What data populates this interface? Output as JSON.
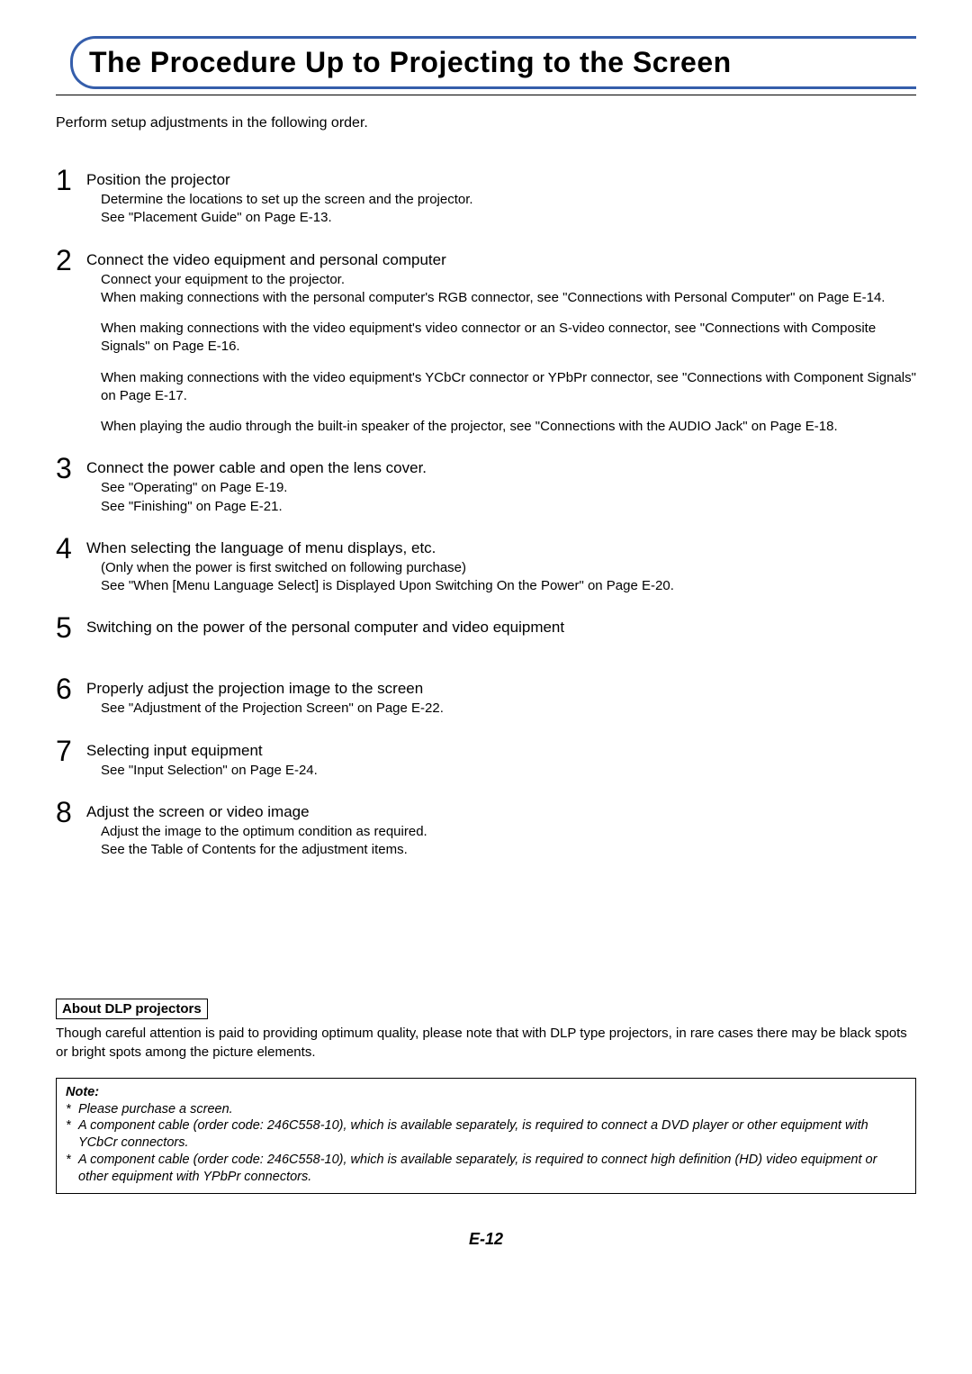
{
  "title": "The Procedure Up to Projecting to the Screen",
  "intro": "Perform setup adjustments in the following order.",
  "steps": [
    {
      "num": "1",
      "title": "Position the projector",
      "paras": [
        "Determine the locations to set up the screen and the projector.\nSee \"Placement Guide\" on Page E-13."
      ]
    },
    {
      "num": "2",
      "title": "Connect the video equipment and personal computer",
      "paras": [
        "Connect your equipment to the projector.\nWhen making connections with the personal computer's RGB connector, see \"Connections with Personal Computer\" on Page E-14.",
        "When making connections with the video equipment's video connector or an S-video connector, see \"Connections with Composite Signals\" on Page E-16.",
        "When making connections with the video equipment's YCbCr connector or YPbPr connector, see \"Connections with Component Signals\" on Page E-17.",
        "When playing the audio through the built-in speaker of the projector, see \"Connections with the AUDIO Jack\" on Page E-18."
      ]
    },
    {
      "num": "3",
      "title": "Connect the power cable and open the lens cover.",
      "paras": [
        "See \"Operating\" on Page E-19.\nSee \"Finishing\" on Page E-21."
      ]
    },
    {
      "num": "4",
      "title": "When selecting the language of menu displays, etc.",
      "paras": [
        "(Only when the power is first switched on following purchase)\nSee \"When [Menu Language Select] is Displayed Upon Switching On the Power\" on Page E-20."
      ]
    },
    {
      "num": "5",
      "title": "Switching on the power of the personal computer and video equipment",
      "paras": []
    },
    {
      "num": "6",
      "title": "Properly adjust the projection image to the screen",
      "paras": [
        "See \"Adjustment of the Projection Screen\" on Page E-22."
      ]
    },
    {
      "num": "7",
      "title": "Selecting input equipment",
      "paras": [
        "See \"Input Selection\" on Page E-24."
      ]
    },
    {
      "num": "8",
      "title": "Adjust the screen or video image",
      "paras": [
        "Adjust the image to the optimum condition as required.\nSee the Table of Contents for the adjustment items."
      ]
    }
  ],
  "dlp": {
    "heading": "About DLP projectors",
    "text": "Though careful attention is paid to providing optimum quality, please note that with DLP type projectors, in rare cases there may be black spots or bright spots among the picture elements."
  },
  "note": {
    "heading": "Note:",
    "items": [
      "Please purchase a screen.",
      "A component cable (order code: 246C558-10), which is available separately, is required to connect a DVD player or other equipment with YCbCr connectors.",
      "A component cable (order code: 246C558-10), which is available separately, is required to connect high definition (HD) video equipment or other equipment with YPbPr connectors."
    ]
  },
  "pageNumber": "E-12"
}
